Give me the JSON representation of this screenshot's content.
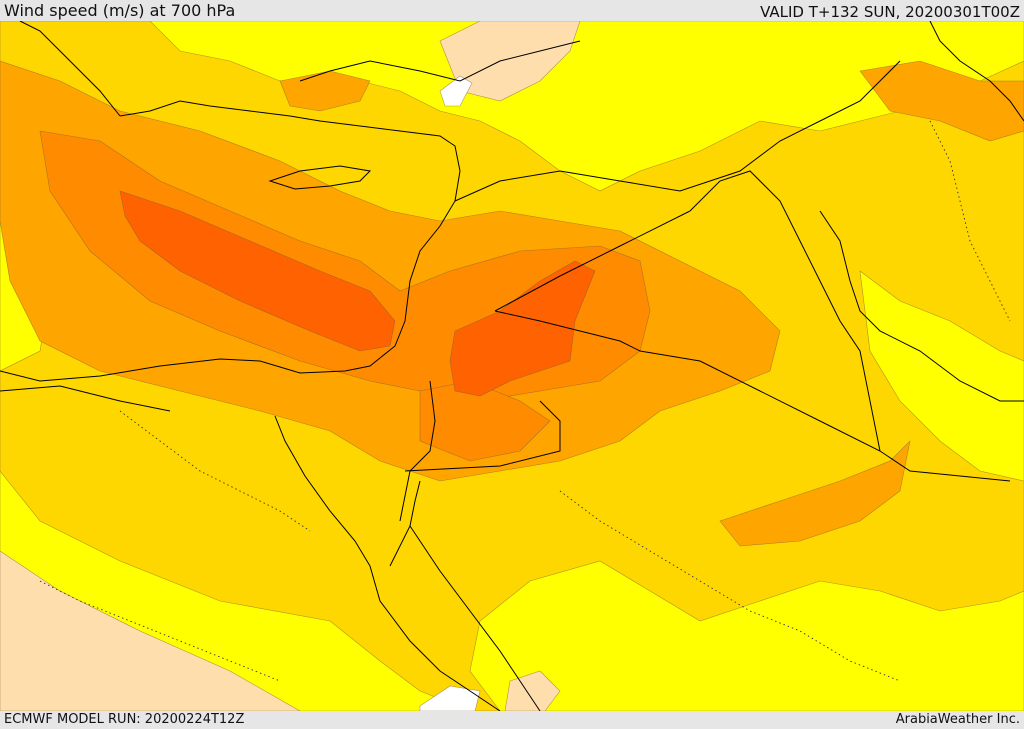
{
  "header": {
    "title": "Wind speed (m/s) at 700 hPa",
    "valid": "VALID T+132 SUN, 20200301T00Z"
  },
  "footer": {
    "model_run": "ECMWF MODEL RUN: 20200224T12Z",
    "brand": "ArabiaWeather Inc."
  },
  "colors": {
    "band_lt5": "#ffffff",
    "band_5_10": "#ffdead",
    "band_10_15": "#ffff00",
    "band_15_20": "#ffd700",
    "band_20_25": "#ffa500",
    "band_25_30": "#ff8c00",
    "band_gt30": "#ff6200",
    "coast": "#000000",
    "border": "#000000"
  }
}
